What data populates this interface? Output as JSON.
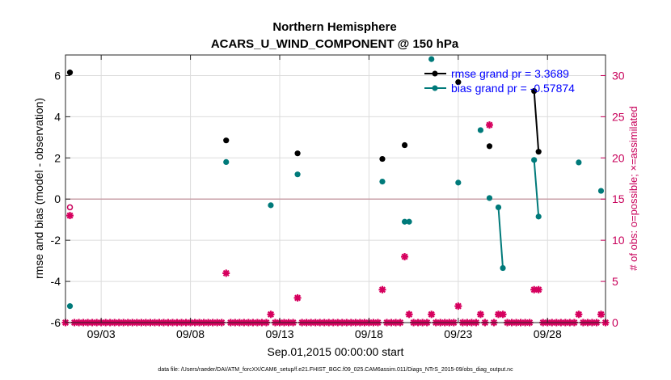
{
  "chart_data": {
    "type": "scatter",
    "title": "Northern Hemisphere",
    "subtitle": "ACARS_U_WIND_COMPONENT @ 150 hPa",
    "xlabel": "Sep.01,2015 00:00:00 start",
    "ylabel": "rmse and bias (model - observation)",
    "ylabel_right": "# of obs: o=possible; ×=assimilated",
    "footer": "data file: /Users/raeder/DAI/ATM_forcXX/CAM6_setup/f.e21.FHIST_BGC.f09_025.CAM6assim.011/Diags_NTrS_2015-09/obs_diag_output.nc",
    "xlim": [
      1.0,
      31.25
    ],
    "ylim": [
      -6,
      7
    ],
    "ylim_right": [
      0,
      32.5
    ],
    "xticks": [
      3,
      8,
      13,
      18,
      23,
      28
    ],
    "xtick_labels": [
      "09/03",
      "09/08",
      "09/13",
      "09/18",
      "09/23",
      "09/28"
    ],
    "yticks": [
      -6,
      -4,
      -2,
      0,
      2,
      4,
      6
    ],
    "ytick_labels": [
      "-6",
      "-4",
      "-2",
      "0",
      "2",
      "4",
      "6"
    ],
    "yticks_right": [
      0,
      5,
      10,
      15,
      20,
      25,
      30
    ],
    "ytick_labels_right": [
      "0",
      "5",
      "10",
      "15",
      "20",
      "25",
      "30"
    ],
    "grid": true,
    "legend_position": "top-right",
    "series": [
      {
        "name": "rmse grand pr = 3.3689",
        "color": "#000000",
        "axis": "left",
        "x": [
          1.25,
          10.0,
          14.0,
          18.75,
          20.0,
          23.0,
          24.75,
          27.25,
          27.5
        ],
        "y": [
          6.15,
          2.85,
          2.22,
          1.95,
          2.62,
          5.68,
          2.57,
          5.25,
          2.3
        ],
        "segments": [
          [
            27.25,
            27.5
          ]
        ]
      },
      {
        "name": "bias grand pr = -0.57874",
        "color": "#007a7a",
        "axis": "left",
        "x": [
          1.25,
          10.0,
          12.5,
          14.0,
          18.75,
          20.0,
          20.25,
          21.5,
          23.0,
          24.25,
          24.75,
          25.25,
          25.5,
          27.25,
          27.5,
          29.75,
          31.0
        ],
        "y": [
          -5.2,
          1.8,
          -0.3,
          1.2,
          0.85,
          -1.1,
          -1.1,
          6.8,
          0.8,
          3.35,
          0.05,
          -0.4,
          -3.35,
          1.9,
          -0.85,
          1.78,
          0.4
        ],
        "segments": [
          [
            25.25,
            25.5
          ],
          [
            27.25,
            27.5
          ]
        ]
      },
      {
        "name": "possible",
        "color": "#c8005a",
        "axis": "right",
        "x": [
          1.25
        ],
        "y": [
          14
        ]
      },
      {
        "name": "assimilated",
        "color": "#d6005e",
        "axis": "right",
        "x": [
          1.25,
          10.0,
          12.5,
          14.0,
          18.75,
          20.0,
          20.25,
          21.5,
          23.0,
          24.25,
          24.75,
          25.25,
          25.5,
          27.25,
          27.5,
          29.75,
          31.0
        ],
        "y": [
          13,
          6,
          1,
          3,
          4,
          8,
          1,
          1,
          2,
          1,
          24,
          1,
          1,
          4,
          4,
          1,
          1
        ]
      }
    ]
  }
}
